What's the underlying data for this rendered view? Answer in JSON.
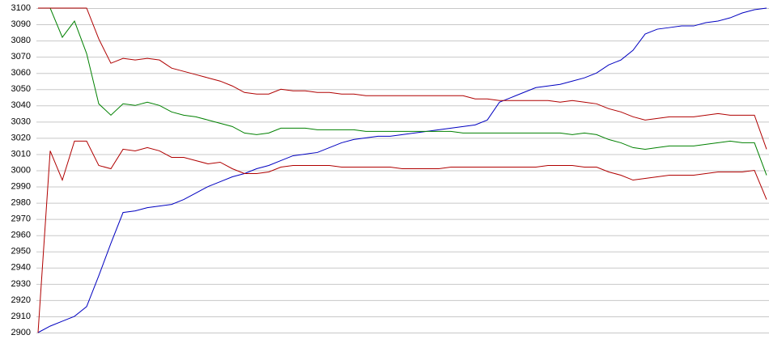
{
  "chart_data": {
    "type": "line",
    "ylim": [
      2900,
      3100
    ],
    "yticks": [
      2900,
      2910,
      2920,
      2930,
      2940,
      2950,
      2960,
      2970,
      2980,
      2990,
      3000,
      3010,
      3020,
      3030,
      3040,
      3050,
      3060,
      3070,
      3080,
      3090,
      3100
    ],
    "grid": true,
    "series": [
      {
        "color": "#0000c0",
        "values": [
          2900,
          2904,
          2907,
          2910,
          2916,
          2935,
          2955,
          2974,
          2975,
          2977,
          2978,
          2979,
          2982,
          2986,
          2990,
          2993,
          2996,
          2998,
          3001,
          3003,
          3006,
          3009,
          3010,
          3011,
          3014,
          3017,
          3019,
          3020,
          3021,
          3021,
          3022,
          3023,
          3024,
          3025,
          3026,
          3027,
          3028,
          3031,
          3042,
          3045,
          3048,
          3051,
          3052,
          3053,
          3055,
          3057,
          3060,
          3065,
          3068,
          3074,
          3084,
          3087,
          3088,
          3089,
          3089,
          3091,
          3092,
          3094,
          3097,
          3099,
          3100
        ]
      },
      {
        "color": "#008000",
        "values": [
          3100,
          3100,
          3082,
          3092,
          3072,
          3041,
          3034,
          3041,
          3040,
          3042,
          3040,
          3036,
          3034,
          3033,
          3031,
          3029,
          3027,
          3023,
          3022,
          3023,
          3026,
          3026,
          3026,
          3025,
          3025,
          3025,
          3025,
          3024,
          3024,
          3024,
          3024,
          3024,
          3024,
          3024,
          3024,
          3023,
          3023,
          3023,
          3023,
          3023,
          3023,
          3023,
          3023,
          3023,
          3022,
          3023,
          3022,
          3019,
          3017,
          3014,
          3013,
          3014,
          3015,
          3015,
          3015,
          3016,
          3017,
          3018,
          3017,
          3017,
          2997
        ]
      },
      {
        "color": "#b00000",
        "values": [
          3100,
          3100,
          3100,
          3100,
          3100,
          3081,
          3066,
          3069,
          3068,
          3069,
          3068,
          3063,
          3061,
          3059,
          3057,
          3055,
          3052,
          3048,
          3047,
          3047,
          3050,
          3049,
          3049,
          3048,
          3048,
          3047,
          3047,
          3046,
          3046,
          3046,
          3046,
          3046,
          3046,
          3046,
          3046,
          3046,
          3044,
          3044,
          3043,
          3043,
          3043,
          3043,
          3043,
          3042,
          3043,
          3042,
          3041,
          3038,
          3036,
          3033,
          3031,
          3032,
          3033,
          3033,
          3033,
          3034,
          3035,
          3034,
          3034,
          3034,
          3013
        ]
      },
      {
        "color": "#b00000",
        "values": [
          2900,
          3012,
          2994,
          3018,
          3018,
          3003,
          3001,
          3013,
          3012,
          3014,
          3012,
          3008,
          3008,
          3006,
          3004,
          3005,
          3001,
          2998,
          2998,
          2999,
          3002,
          3003,
          3003,
          3003,
          3003,
          3002,
          3002,
          3002,
          3002,
          3002,
          3001,
          3001,
          3001,
          3001,
          3002,
          3002,
          3002,
          3002,
          3002,
          3002,
          3002,
          3002,
          3003,
          3003,
          3003,
          3002,
          3002,
          2999,
          2997,
          2994,
          2995,
          2996,
          2997,
          2997,
          2997,
          2998,
          2999,
          2999,
          2999,
          3000,
          2982
        ]
      }
    ]
  }
}
